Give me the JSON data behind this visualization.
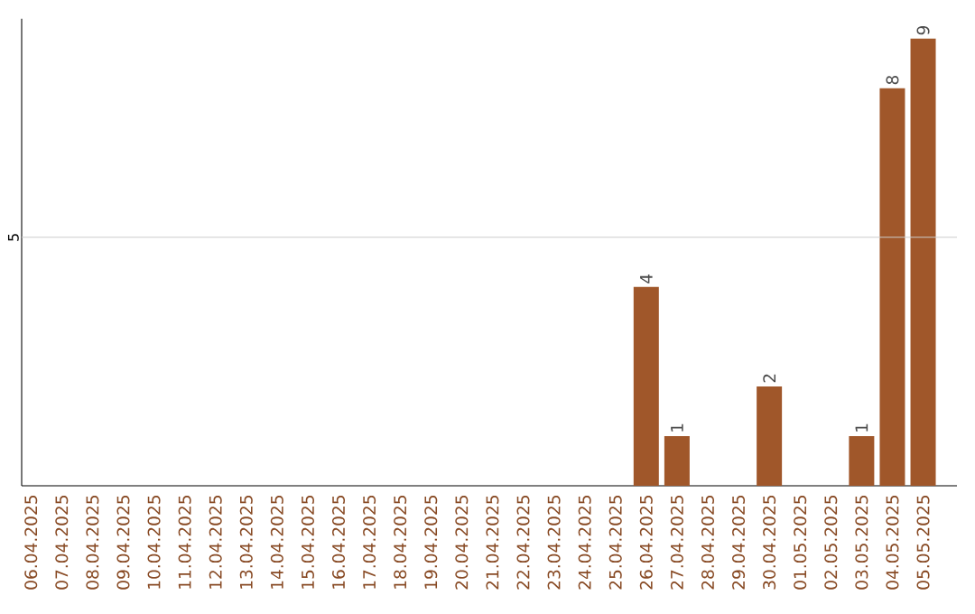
{
  "chart_data": {
    "type": "bar",
    "categories": [
      "06.04.2025",
      "07.04.2025",
      "08.04.2025",
      "09.04.2025",
      "10.04.2025",
      "11.04.2025",
      "12.04.2025",
      "13.04.2025",
      "14.04.2025",
      "15.04.2025",
      "16.04.2025",
      "17.04.2025",
      "18.04.2025",
      "19.04.2025",
      "20.04.2025",
      "21.04.2025",
      "22.04.2025",
      "23.04.2025",
      "24.04.2025",
      "25.04.2025",
      "26.04.2025",
      "27.04.2025",
      "28.04.2025",
      "29.04.2025",
      "30.04.2025",
      "01.05.2025",
      "02.05.2025",
      "03.05.2025",
      "04.05.2025",
      "05.05.2025"
    ],
    "values": [
      null,
      null,
      null,
      null,
      null,
      null,
      null,
      null,
      null,
      null,
      null,
      null,
      null,
      null,
      null,
      null,
      null,
      null,
      null,
      null,
      4,
      1,
      null,
      null,
      2,
      null,
      null,
      1,
      8,
      9
    ],
    "data_labels": true,
    "color": "#a0572a",
    "ylim": [
      0,
      9.4
    ],
    "ref_lines": [
      {
        "axis": "y",
        "value": 5,
        "label": "5",
        "color": "#cccccc"
      }
    ]
  }
}
